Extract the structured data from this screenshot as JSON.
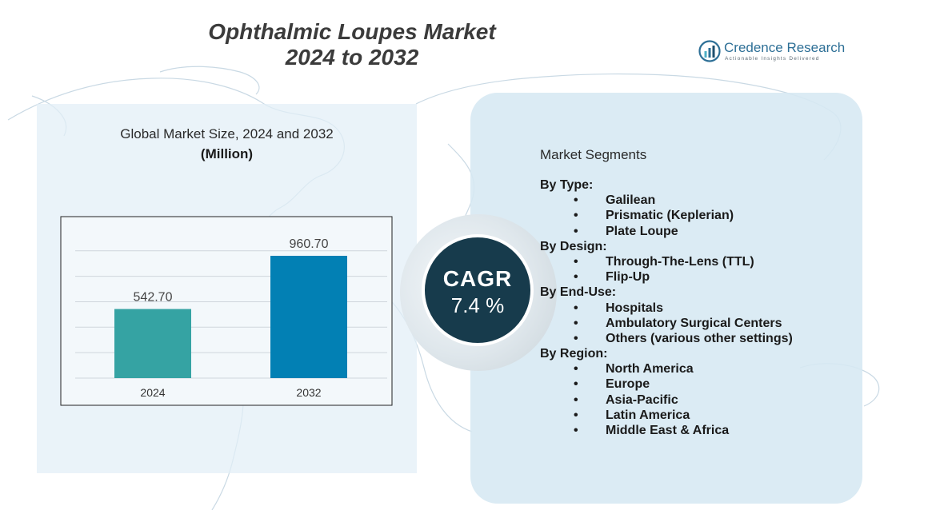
{
  "header": {
    "title_line1": "Ophthalmic Loupes Market",
    "title_line2": "2024 to 2032"
  },
  "logo": {
    "name_part1": "Credence",
    "name_part2": " Research",
    "tagline": "Actionable Insights Delivered"
  },
  "chart": {
    "title": "Global Market Size, 2024 and 2032",
    "unit": "(Million)"
  },
  "chart_data": {
    "type": "bar",
    "title": "Global Market Size, 2024 and 2032",
    "ylabel": "(Million)",
    "categories": [
      "2024",
      "2032"
    ],
    "values": [
      542.7,
      960.7
    ],
    "value_labels": [
      "542.70",
      "960.70"
    ],
    "colors": [
      "#35a3a3",
      "#0280b4"
    ],
    "ylim": [
      0,
      1150
    ],
    "grid": true,
    "legend": "none"
  },
  "cagr": {
    "label": "CAGR",
    "value": "7.4 %"
  },
  "segments": {
    "title": "Market Segments",
    "bullet": "•",
    "groups": [
      {
        "label": "By Type:",
        "items": [
          "Galilean",
          "Prismatic (Keplerian)",
          "Plate Loupe"
        ]
      },
      {
        "label": "By Design:",
        "items": [
          "Through-The-Lens (TTL)",
          "Flip-Up"
        ]
      },
      {
        "label": "By End-Use:",
        "items": [
          "Hospitals",
          "Ambulatory Surgical Centers",
          "Others (various other settings)"
        ]
      },
      {
        "label": "By Region:",
        "items": [
          "North America",
          "Europe",
          "Asia-Pacific",
          "Latin America",
          "Middle East & Africa"
        ]
      }
    ]
  },
  "colors": {
    "panel_left": "#e2eef7",
    "panel_right": "#d6e8f3",
    "cagr_fill": "#173b4c",
    "title_text": "#3b3b3b",
    "logo_blue": "#2d6f96"
  }
}
